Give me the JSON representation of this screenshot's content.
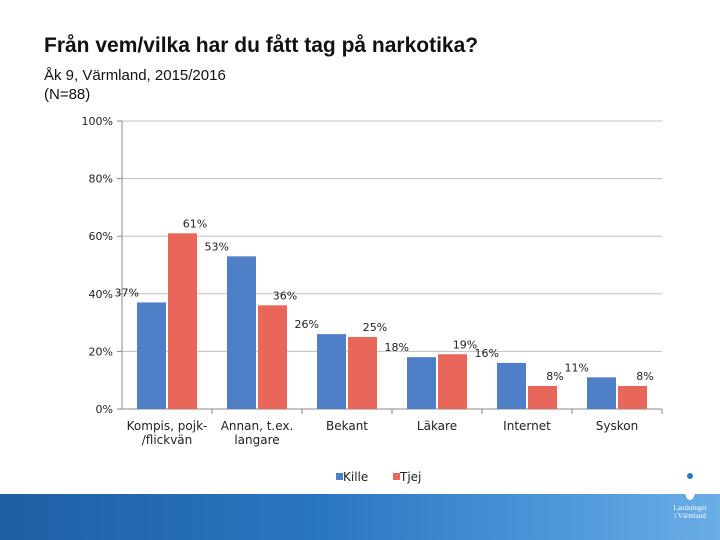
{
  "title": "Från vem/vilka har du fått tag på narkotika?",
  "subtitle_line1": "Åk 9, Värmland, 2015/2016",
  "subtitle_line2": "(N=88)",
  "colors": {
    "kille": "#4f7fc6",
    "tjej": "#e8675a",
    "grid": "#bfbfbf",
    "axis": "#888888"
  },
  "chart_data": {
    "type": "bar",
    "title": "Från vem/vilka har du fått tag på narkotika?",
    "xlabel": "",
    "ylabel": "",
    "ylim": [
      0,
      100
    ],
    "yticks": [
      "0%",
      "20%",
      "40%",
      "60%",
      "80%",
      "100%"
    ],
    "yticks_values": [
      0,
      20,
      40,
      60,
      80,
      100
    ],
    "categories": [
      [
        "Kompis, pojk-",
        "/flickvän"
      ],
      [
        "Annan, t.ex.",
        "langare"
      ],
      [
        "Bekant"
      ],
      [
        "Läkare"
      ],
      [
        "Internet"
      ],
      [
        "Syskon"
      ]
    ],
    "series": [
      {
        "name": "Kille",
        "values": [
          37,
          53,
          26,
          18,
          16,
          11
        ],
        "labels": [
          "37%",
          "53%",
          "26%",
          "18%",
          "16%",
          "11%"
        ]
      },
      {
        "name": "Tjej",
        "values": [
          61,
          36,
          25,
          19,
          8,
          8
        ],
        "labels": [
          "61%",
          "36%",
          "25%",
          "19%",
          "8%",
          "8%"
        ]
      }
    ],
    "legend": [
      "Kille",
      "Tjej"
    ],
    "legend_position": "bottom",
    "grid": true
  },
  "logo": {
    "line1": "Landstinget",
    "line2": "i Värmland"
  }
}
